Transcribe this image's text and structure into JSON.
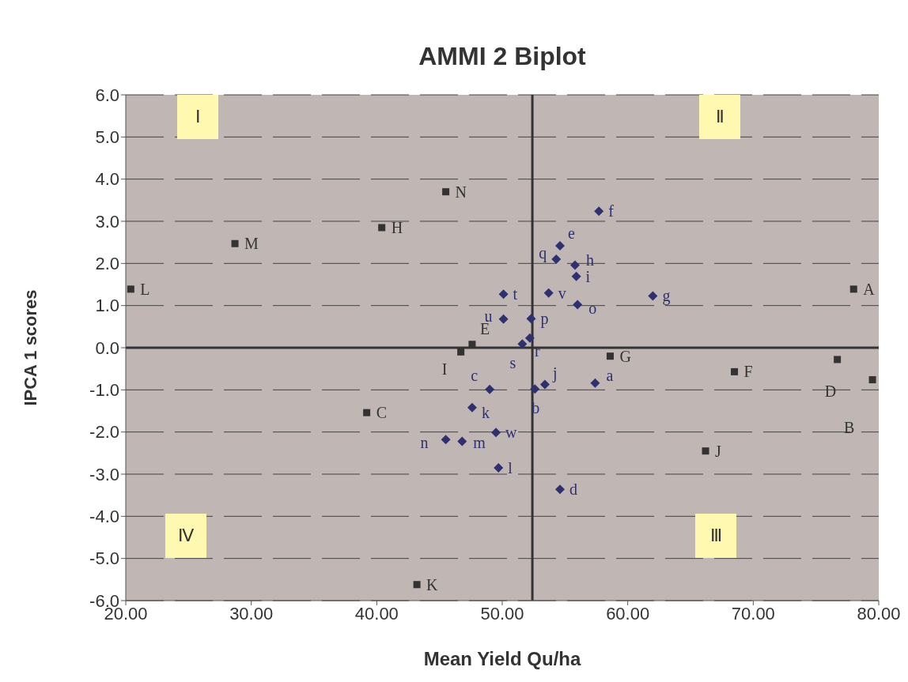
{
  "chart_data": {
    "type": "scatter",
    "title": "AMMI 2 Biplot",
    "xlabel": "Mean Yield Qu/ha",
    "ylabel": "IPCA 1 scores",
    "xlim": [
      20,
      80
    ],
    "xticks": [
      {
        "value": 20,
        "label": "20.00"
      },
      {
        "value": 30,
        "label": "30.00"
      },
      {
        "value": 40,
        "label": "40.00"
      },
      {
        "value": 50,
        "label": "50.00"
      },
      {
        "value": 60,
        "label": "60.00"
      },
      {
        "value": 70,
        "label": "70.00"
      },
      {
        "value": 80,
        "label": "80.00"
      }
    ],
    "ylim": [
      -6,
      6
    ],
    "yticks": [
      {
        "value": -6,
        "label": "-6.0"
      },
      {
        "value": -5,
        "label": "-5.0"
      },
      {
        "value": -4,
        "label": "-4.0"
      },
      {
        "value": -3,
        "label": "-3.0"
      },
      {
        "value": -2,
        "label": "-2.0"
      },
      {
        "value": -1,
        "label": "-1.0"
      },
      {
        "value": 0,
        "label": "0.0"
      },
      {
        "value": 1,
        "label": "1.0"
      },
      {
        "value": 2,
        "label": "2.0"
      },
      {
        "value": 3,
        "label": "3.0"
      },
      {
        "value": 4,
        "label": "4.0"
      },
      {
        "value": 5,
        "label": "5.0"
      },
      {
        "value": 6,
        "label": "6.0"
      }
    ],
    "grid": "y",
    "legend": false,
    "series": [
      {
        "color": "#333333",
        "marker": "square",
        "x": [
          45.5,
          40.4,
          28.7,
          20.4,
          78.0,
          47.6,
          46.7,
          58.6,
          68.5,
          76.7,
          79.5,
          39.2,
          66.2,
          43.2
        ],
        "values": [
          3.7,
          2.85,
          2.47,
          1.39,
          1.39,
          0.08,
          -0.1,
          -0.2,
          -0.57,
          -0.28,
          -0.76,
          -1.54,
          -2.45,
          -5.62
        ]
      },
      {
        "color": "#2e3170",
        "marker": "diamond",
        "x": [
          57.7,
          54.6,
          54.3,
          55.8,
          55.9,
          50.1,
          53.7,
          56.0,
          62.0,
          50.1,
          52.3,
          52.2,
          51.6,
          49.0,
          52.6,
          53.4,
          57.4,
          47.6,
          49.5,
          46.8,
          45.5,
          49.7,
          54.6
        ],
        "values": [
          3.24,
          2.42,
          2.1,
          1.96,
          1.69,
          1.27,
          1.3,
          1.02,
          1.23,
          0.68,
          0.69,
          0.23,
          0.09,
          -0.99,
          -0.98,
          -0.87,
          -0.84,
          -1.42,
          -2.01,
          -2.22,
          -2.18,
          -2.85,
          -3.36
        ]
      }
    ],
    "ref_lines": [
      {
        "axis": "x",
        "value": 52.4,
        "color": "#333333"
      },
      {
        "axis": "y",
        "value": 0,
        "color": "#333333"
      }
    ],
    "annotations": [
      "Ⅰ",
      "Ⅱ",
      "Ⅲ",
      "Ⅳ",
      {
        "text": "N",
        "x": 45.5,
        "y": 3.7
      },
      {
        "text": "H",
        "x": 40.4,
        "y": 2.85
      },
      {
        "text": "M",
        "x": 28.7,
        "y": 2.47
      },
      {
        "text": "L",
        "x": 20.4,
        "y": 1.39
      },
      {
        "text": "A",
        "x": 78.0,
        "y": 1.39
      },
      {
        "text": "E",
        "x": 47.6,
        "y": 0.08
      },
      {
        "text": "I",
        "x": 46.7,
        "y": -0.1
      },
      {
        "text": "G",
        "x": 58.6,
        "y": -0.2
      },
      {
        "text": "F",
        "x": 68.5,
        "y": -0.57
      },
      {
        "text": "D",
        "x": 76.7,
        "y": -0.28
      },
      {
        "text": "B",
        "x": 79.5,
        "y": -0.76
      },
      {
        "text": "C",
        "x": 39.2,
        "y": -1.54
      },
      {
        "text": "J",
        "x": 66.2,
        "y": -2.45
      },
      {
        "text": "K",
        "x": 43.2,
        "y": -5.62
      },
      {
        "text": "f",
        "x": 57.7,
        "y": 3.24
      },
      {
        "text": "e",
        "x": 54.6,
        "y": 2.42
      },
      {
        "text": "q",
        "x": 54.3,
        "y": 2.1
      },
      {
        "text": "h",
        "x": 55.8,
        "y": 1.96
      },
      {
        "text": "i",
        "x": 55.9,
        "y": 1.69
      },
      {
        "text": "t",
        "x": 50.1,
        "y": 1.27
      },
      {
        "text": "v",
        "x": 53.7,
        "y": 1.3
      },
      {
        "text": "o",
        "x": 56.0,
        "y": 1.02
      },
      {
        "text": "g",
        "x": 62.0,
        "y": 1.23
      },
      {
        "text": "u",
        "x": 50.1,
        "y": 0.68
      },
      {
        "text": "p",
        "x": 52.3,
        "y": 0.69
      },
      {
        "text": "r",
        "x": 52.2,
        "y": 0.23
      },
      {
        "text": "s",
        "x": 51.6,
        "y": 0.09
      },
      {
        "text": "c",
        "x": 49.0,
        "y": -0.99
      },
      {
        "text": "b",
        "x": 52.6,
        "y": -0.98
      },
      {
        "text": "j",
        "x": 53.4,
        "y": -0.87
      },
      {
        "text": "a",
        "x": 57.4,
        "y": -0.84
      },
      {
        "text": "k",
        "x": 47.6,
        "y": -1.42
      },
      {
        "text": "w",
        "x": 49.5,
        "y": -2.01
      },
      {
        "text": "m",
        "x": 46.8,
        "y": -2.22
      },
      {
        "text": "n",
        "x": 45.5,
        "y": -2.18
      },
      {
        "text": "l",
        "x": 49.7,
        "y": -2.85
      },
      {
        "text": "d",
        "x": 54.6,
        "y": -3.36
      }
    ]
  }
}
